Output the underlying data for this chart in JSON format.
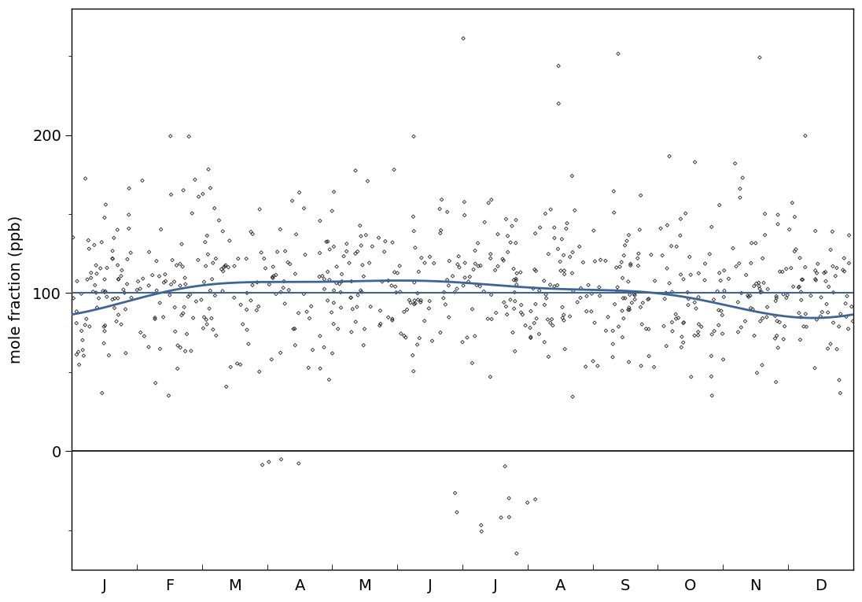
{
  "ylabel": "mole fraction (ppb)",
  "month_labels": [
    "J",
    "F",
    "M",
    "A",
    "M",
    "J",
    "J",
    "A",
    "S",
    "O",
    "N",
    "D"
  ],
  "ylim": [
    -75,
    280
  ],
  "yticks": [
    0,
    100,
    200
  ],
  "hline_y": 0,
  "hline_color": "#000000",
  "scatter_color": "#222222",
  "curve_color": "#3d6499",
  "background_color": "#ffffff",
  "scatter_marker": "D",
  "scatter_size": 5,
  "scatter_facecolor": "none",
  "scatter_edgewidth": 0.6,
  "curve_linewidth": 2.0,
  "flat_linewidth": 1.5
}
